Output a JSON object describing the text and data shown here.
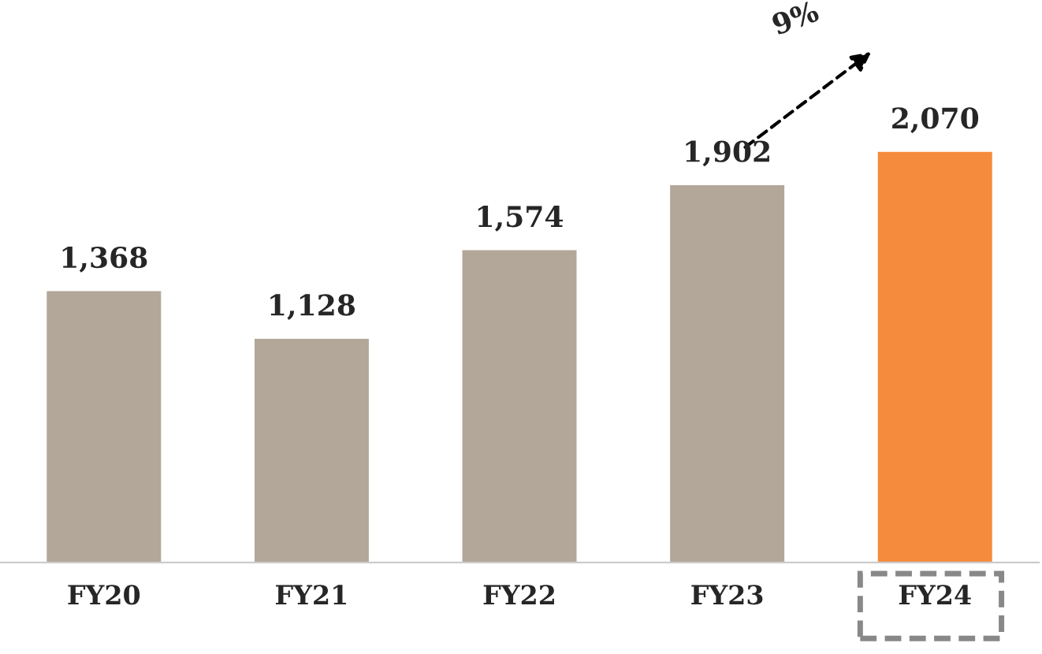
{
  "chart_data": {
    "type": "bar",
    "categories": [
      "FY20",
      "FY21",
      "FY22",
      "FY23",
      "FY24"
    ],
    "values": [
      1368,
      1128,
      1574,
      1902,
      2070
    ],
    "colors": [
      "#b2a798",
      "#b2a798",
      "#b2a798",
      "#b2a798",
      "#f58b3c"
    ],
    "data_labels": true,
    "value_labels": [
      "1,368",
      "1,128",
      "1,574",
      "1,902",
      "2,070"
    ],
    "annotations": [
      "9%"
    ],
    "grid": false,
    "legend": false
  }
}
